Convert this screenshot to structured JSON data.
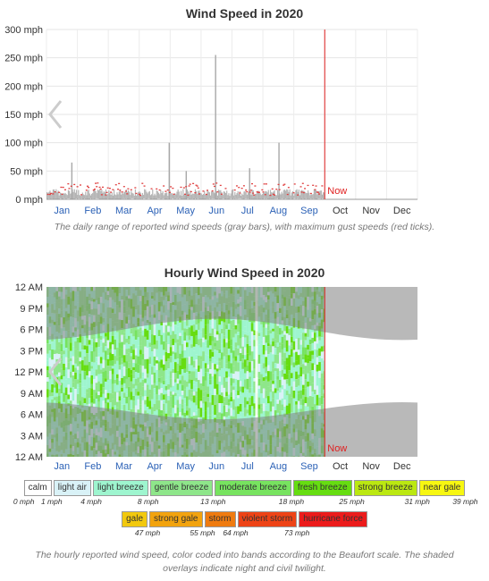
{
  "chart_data": [
    {
      "type": "bar",
      "title": "Wind Speed in 2020",
      "y_ticks": [
        "0 mph",
        "50 mph",
        "100 mph",
        "150 mph",
        "200 mph",
        "250 mph",
        "300 mph"
      ],
      "ylim": [
        0,
        300
      ],
      "x_ticks": [
        "Jan",
        "Feb",
        "Mar",
        "Apr",
        "May",
        "Jun",
        "Jul",
        "Aug",
        "Sep",
        "Oct",
        "Nov",
        "Dec"
      ],
      "now_label": "Now",
      "now_month": 9.0,
      "grid": true,
      "series": [
        {
          "name": "daily range",
          "color": "#aaaaaa"
        },
        {
          "name": "maximum gust",
          "color": "#e04040"
        }
      ],
      "spikes": [
        {
          "month": 0.8,
          "value": 65
        },
        {
          "month": 3.95,
          "value": 100
        },
        {
          "month": 4.5,
          "value": 50
        },
        {
          "month": 5.45,
          "value": 255
        },
        {
          "month": 6.55,
          "value": 55
        },
        {
          "month": 7.5,
          "value": 100
        }
      ],
      "caption": "The daily range of reported wind speeds (gray bars), with maximum gust speeds (red ticks)."
    },
    {
      "type": "heatmap",
      "title": "Hourly Wind Speed in 2020",
      "y_ticks": [
        "12 AM",
        "9 PM",
        "6 PM",
        "3 PM",
        "12 PM",
        "9 AM",
        "6 AM",
        "3 AM",
        "12 AM"
      ],
      "x_ticks": [
        "Jan",
        "Feb",
        "Mar",
        "Apr",
        "May",
        "Jun",
        "Jul",
        "Aug",
        "Sep",
        "Oct",
        "Nov",
        "Dec"
      ],
      "now_label": "Now",
      "now_month": 9.0,
      "legend_row1": [
        {
          "label": "calm",
          "color": "#ffffff"
        },
        {
          "label": "light air",
          "color": "#d9f2f7"
        },
        {
          "label": "light breeze",
          "color": "#9ef5cf"
        },
        {
          "label": "gentle breeze",
          "color": "#8ee68a"
        },
        {
          "label": "moderate breeze",
          "color": "#77e35f"
        },
        {
          "label": "fresh breeze",
          "color": "#66dd11"
        },
        {
          "label": "strong breeze",
          "color": "#bbe811"
        },
        {
          "label": "near gale",
          "color": "#f7f711"
        }
      ],
      "legend_row1_values": [
        "0 mph",
        "1 mph",
        "4 mph",
        "8 mph",
        "13 mph",
        "18 mph",
        "25 mph",
        "31 mph",
        "39 mph"
      ],
      "legend_row2": [
        {
          "label": "gale",
          "color": "#f2c90e"
        },
        {
          "label": "strong gale",
          "color": "#f2a30e"
        },
        {
          "label": "storm",
          "color": "#ef7b10"
        },
        {
          "label": "violent storm",
          "color": "#ee4316"
        },
        {
          "label": "hurricane force",
          "color": "#ec1b1b"
        }
      ],
      "legend_row2_values": [
        "47 mph",
        "55 mph",
        "64 mph",
        "73 mph"
      ],
      "caption": "The hourly reported wind speed, color coded into bands according to the Beaufort scale. The shaded overlays indicate night and civil twilight."
    }
  ]
}
